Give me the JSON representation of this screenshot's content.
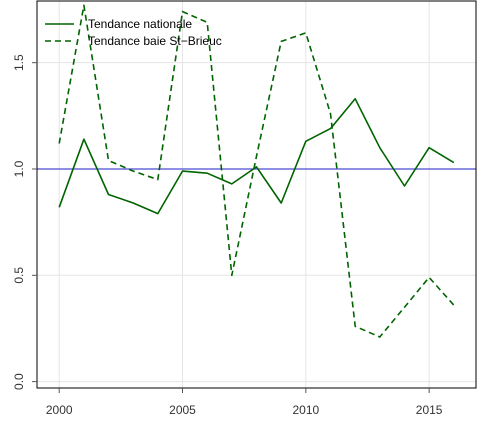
{
  "chart_data": {
    "type": "line",
    "title": "",
    "xlabel": "",
    "ylabel": "",
    "xlim": [
      1999.1,
      2016.9
    ],
    "ylim": [
      -0.03,
      1.79
    ],
    "grid": true,
    "legend_position": "top-left",
    "x": [
      2000,
      2001,
      2002,
      2003,
      2004,
      2005,
      2006,
      2007,
      2008,
      2009,
      2010,
      2011,
      2012,
      2013,
      2014,
      2015,
      2016
    ],
    "x_ticks": [
      2000,
      2005,
      2010,
      2015
    ],
    "x_tick_labels": [
      "2000",
      "2005",
      "2010",
      "2015"
    ],
    "y_ticks": [
      0.0,
      0.5,
      1.0,
      1.5
    ],
    "y_tick_labels": [
      "0.0",
      "0.5",
      "1.0",
      "1.5"
    ],
    "series": [
      {
        "name": "Tendance nationale",
        "style": "solid",
        "color": "#006400",
        "values": [
          0.82,
          1.14,
          0.88,
          0.84,
          0.79,
          0.99,
          0.98,
          0.93,
          1.01,
          0.84,
          1.13,
          1.19,
          1.33,
          1.1,
          0.92,
          1.1,
          1.03
        ]
      },
      {
        "name": "Tendance baie St−Brieuc",
        "style": "dashed",
        "color": "#006400",
        "values": [
          1.12,
          1.77,
          1.04,
          0.99,
          0.95,
          1.74,
          1.69,
          0.5,
          1.06,
          1.6,
          1.64,
          1.26,
          0.26,
          0.21,
          0.35,
          0.49,
          0.36
        ]
      }
    ],
    "reference_line": {
      "y": 1.0,
      "color": "#4b4bd0"
    },
    "colors": {
      "background": "#ffffff",
      "grid": "#e5e5e5",
      "frame": "#000000",
      "axis": "#555555"
    }
  }
}
